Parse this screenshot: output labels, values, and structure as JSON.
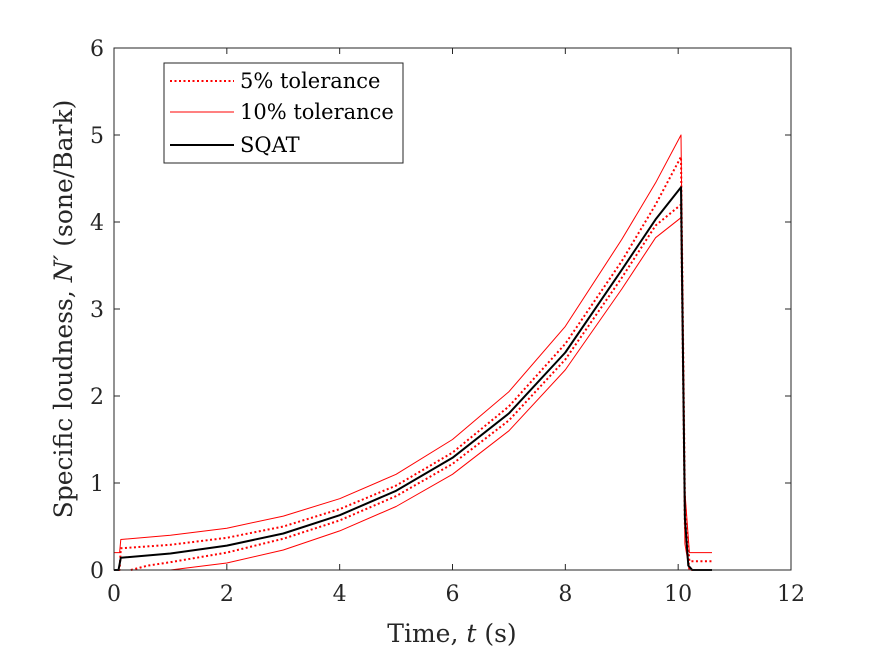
{
  "chart_data": {
    "type": "line",
    "xlabel_prefix": "Time, ",
    "xlabel_var": "t",
    "xlabel_suffix": " (s)",
    "ylabel_prefix": "Specific loudness, ",
    "ylabel_var": "N′",
    "ylabel_suffix": " (sone/Bark)",
    "xlim": [
      0,
      12
    ],
    "ylim": [
      0,
      6
    ],
    "xticks": [
      0,
      2,
      4,
      6,
      8,
      10,
      12
    ],
    "yticks": [
      0,
      1,
      2,
      3,
      4,
      5,
      6
    ],
    "grid": false,
    "legend_position": "top-left",
    "series": [
      {
        "name": "5% tolerance",
        "style": "dotted",
        "color": "#ff0000",
        "lines": [
          [
            [
              0.0,
              0.0
            ],
            [
              0.1,
              0.0
            ],
            [
              0.12,
              0.25
            ],
            [
              1,
              0.29
            ],
            [
              2,
              0.37
            ],
            [
              3,
              0.5
            ],
            [
              4,
              0.7
            ],
            [
              5,
              0.97
            ],
            [
              6,
              1.35
            ],
            [
              7,
              1.88
            ],
            [
              8,
              2.6
            ],
            [
              9,
              3.55
            ],
            [
              9.6,
              4.2
            ],
            [
              10.05,
              4.75
            ],
            [
              10.12,
              0.8
            ],
            [
              10.2,
              0.1
            ],
            [
              10.6,
              0.1
            ]
          ],
          [
            [
              0.3,
              0.0
            ],
            [
              0.6,
              0.05
            ],
            [
              1,
              0.09
            ],
            [
              2,
              0.2
            ],
            [
              3,
              0.36
            ],
            [
              4,
              0.57
            ],
            [
              5,
              0.85
            ],
            [
              6,
              1.22
            ],
            [
              7,
              1.72
            ],
            [
              8,
              2.42
            ],
            [
              9,
              3.36
            ],
            [
              9.6,
              3.96
            ],
            [
              10.05,
              4.2
            ],
            [
              10.12,
              0.5
            ],
            [
              10.2,
              0.0
            ],
            [
              10.6,
              0.0
            ]
          ]
        ]
      },
      {
        "name": "10% tolerance",
        "style": "solid-thin",
        "color": "#ff0000",
        "lines": [
          [
            [
              0.0,
              0.2
            ],
            [
              0.1,
              0.2
            ],
            [
              0.12,
              0.35
            ],
            [
              1,
              0.4
            ],
            [
              2,
              0.48
            ],
            [
              3,
              0.62
            ],
            [
              4,
              0.82
            ],
            [
              5,
              1.1
            ],
            [
              6,
              1.5
            ],
            [
              7,
              2.05
            ],
            [
              8,
              2.8
            ],
            [
              9,
              3.8
            ],
            [
              9.6,
              4.45
            ],
            [
              10.05,
              5.0
            ],
            [
              10.12,
              0.9
            ],
            [
              10.2,
              0.2
            ],
            [
              10.6,
              0.2
            ]
          ],
          [
            [
              0.55,
              0.0
            ],
            [
              1,
              0.0
            ],
            [
              2,
              0.08
            ],
            [
              3,
              0.23
            ],
            [
              4,
              0.45
            ],
            [
              5,
              0.73
            ],
            [
              6,
              1.1
            ],
            [
              7,
              1.6
            ],
            [
              8,
              2.3
            ],
            [
              9,
              3.23
            ],
            [
              9.6,
              3.82
            ],
            [
              10.05,
              4.05
            ],
            [
              10.12,
              0.3
            ],
            [
              10.2,
              0.0
            ],
            [
              10.6,
              0.0
            ]
          ]
        ]
      },
      {
        "name": "SQAT",
        "style": "solid",
        "color": "#000000",
        "lines": [
          [
            [
              0.0,
              0.0
            ],
            [
              0.08,
              0.0
            ],
            [
              0.12,
              0.14
            ],
            [
              1,
              0.19
            ],
            [
              2,
              0.28
            ],
            [
              3,
              0.42
            ],
            [
              4,
              0.63
            ],
            [
              5,
              0.91
            ],
            [
              6,
              1.29
            ],
            [
              7,
              1.8
            ],
            [
              8,
              2.5
            ],
            [
              9,
              3.45
            ],
            [
              9.6,
              4.03
            ],
            [
              10.05,
              4.4
            ],
            [
              10.12,
              0.6
            ],
            [
              10.18,
              0.05
            ],
            [
              10.25,
              0.0
            ],
            [
              10.6,
              0.0
            ]
          ]
        ]
      }
    ]
  }
}
